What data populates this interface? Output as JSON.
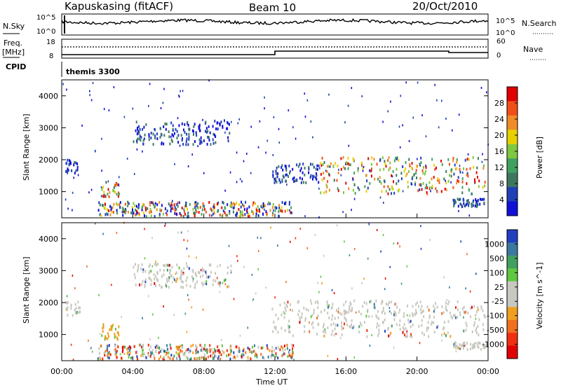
{
  "header": {
    "station": "Kapuskasing (fitACF)",
    "beam": "Beam 10",
    "date": "20/Oct/2010"
  },
  "noise_panel": {
    "left_label": "N.Sky",
    "right_label": "N.Search",
    "left_ticks": [
      "10^5",
      "10^0"
    ],
    "right_ticks": [
      "10^5",
      "10^0"
    ]
  },
  "freq_panel": {
    "left_label_1": "Freq.",
    "left_label_2": "[MHz]",
    "right_label": "Nave",
    "left_ticks": [
      "18",
      "8"
    ],
    "right_ticks": [
      "60",
      "0"
    ]
  },
  "cpid_panel": {
    "label": "CPID",
    "value": "themis 3300"
  },
  "colors": {
    "background": "#ffffff",
    "frame": "#000000",
    "ground_scatter": "#c8c8c0"
  },
  "chart_data": [
    {
      "type": "heatmap",
      "title": "",
      "xlabel": "",
      "ylabel": "Slant Range [km]",
      "x_range_hours": [
        0,
        24
      ],
      "ylim_km": [
        180,
        4500
      ],
      "yticks": [
        "1000",
        "2000",
        "3000",
        "4000"
      ],
      "colorbar": {
        "label": "Power [dB]",
        "ticks": [
          "28",
          "24",
          "20",
          "16",
          "12",
          "8",
          "4"
        ],
        "colors": [
          "#e00000",
          "#f05018",
          "#f08c28",
          "#e8d000",
          "#80c840",
          "#40a060",
          "#3c7860",
          "#2040b8",
          "#1010d8"
        ]
      },
      "regions": [
        {
          "from_h": 0.2,
          "to_h": 1.0,
          "from_km": 1550,
          "to_km": 2000,
          "level": "weak"
        },
        {
          "from_h": 2.2,
          "to_h": 3.2,
          "from_km": 800,
          "to_km": 1300,
          "level": "strong"
        },
        {
          "from_h": 4.0,
          "to_h": 9.5,
          "from_km": 2450,
          "to_km": 3200,
          "level": "weak"
        },
        {
          "from_h": 2.0,
          "to_h": 13.0,
          "from_km": 200,
          "to_km": 650,
          "level": "mixed"
        },
        {
          "from_h": 11.8,
          "to_h": 14.5,
          "from_km": 1250,
          "to_km": 1850,
          "level": "weak"
        },
        {
          "from_h": 14.5,
          "to_h": 23.8,
          "from_km": 900,
          "to_km": 2050,
          "level": "strong"
        },
        {
          "from_h": 22.0,
          "to_h": 23.8,
          "from_km": 500,
          "to_km": 750,
          "level": "weak"
        }
      ]
    },
    {
      "type": "heatmap",
      "title": "",
      "xlabel": "Time UT",
      "ylabel": "Slant Range [km]",
      "x_range_hours": [
        0,
        24
      ],
      "ylim_km": [
        180,
        4500
      ],
      "yticks": [
        "1000",
        "2000",
        "3000",
        "4000"
      ],
      "xticks": [
        "00:00",
        "04:00",
        "08:00",
        "12:00",
        "16:00",
        "20:00",
        "00:00"
      ],
      "colorbar": {
        "label": "Velocity [m s^-1]",
        "ticks": [
          "1000",
          "500",
          "100",
          "25",
          "-25",
          "-100",
          "-500",
          "-1000"
        ],
        "colors": [
          "#2040c0",
          "#3c78a0",
          "#40a060",
          "#60c840",
          "#c8c8c0",
          "#c8c8c0",
          "#f0a020",
          "#f07020",
          "#f03010",
          "#e00000"
        ]
      },
      "regions": [
        {
          "from_h": 0.2,
          "to_h": 1.0,
          "from_km": 1550,
          "to_km": 2000,
          "level": "ground"
        },
        {
          "from_h": 2.2,
          "to_h": 3.2,
          "from_km": 800,
          "to_km": 1300,
          "level": "orange-green"
        },
        {
          "from_h": 4.0,
          "to_h": 9.5,
          "from_km": 2450,
          "to_km": 3200,
          "level": "ground"
        },
        {
          "from_h": 2.0,
          "to_h": 13.0,
          "from_km": 200,
          "to_km": 650,
          "level": "mixed"
        },
        {
          "from_h": 11.8,
          "to_h": 23.8,
          "from_km": 900,
          "to_km": 2050,
          "level": "ground"
        },
        {
          "from_h": 22.0,
          "to_h": 23.8,
          "from_km": 500,
          "to_km": 750,
          "level": "ground"
        }
      ]
    }
  ]
}
